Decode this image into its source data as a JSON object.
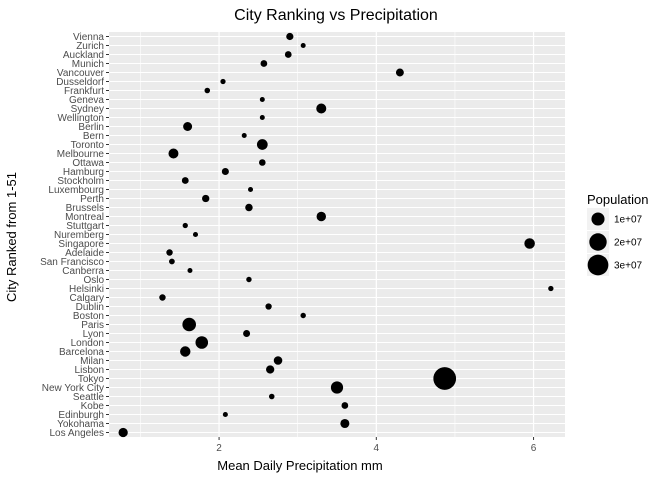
{
  "chart_data": {
    "type": "scatter",
    "title": "City Ranking vs Precipitation",
    "xlabel": "Mean Daily Precipitation mm",
    "ylabel": "City Ranked from 1-51",
    "xlim": [
      0.6,
      6.4
    ],
    "x_ticks": [
      2,
      4,
      6
    ],
    "x_tick_labels": [
      "2",
      "4",
      "6"
    ],
    "legend": {
      "title": "Population",
      "placement": "right",
      "entries": [
        {
          "label": "1e+07",
          "value": 10000000
        },
        {
          "label": "2e+07",
          "value": 20000000
        },
        {
          "label": "3e+07",
          "value": 30000000
        }
      ]
    },
    "categories": [
      "Vienna",
      "Zurich",
      "Auckland",
      "Munich",
      "Vancouver",
      "Dusseldorf",
      "Frankfurt",
      "Geneva",
      "Sydney",
      "Wellington",
      "Berlin",
      "Bern",
      "Toronto",
      "Melbourne",
      "Ottawa",
      "Hamburg",
      "Stockholm",
      "Luxembourg",
      "Perth",
      "Brussels",
      "Montreal",
      "Stuttgart",
      "Nuremberg",
      "Singapore",
      "Adelaide",
      "San Francisco",
      "Canberra",
      "Oslo",
      "Helsinki",
      "Calgary",
      "Dublin",
      "Boston",
      "Paris",
      "Lyon",
      "London",
      "Barcelona",
      "Milan",
      "Lisbon",
      "Tokyo",
      "New York City",
      "Seattle",
      "Kobe",
      "Edinburgh",
      "Yokohama",
      "Los Angeles"
    ],
    "points": [
      {
        "city": "Vienna",
        "x": 2.9,
        "population": 1900000
      },
      {
        "city": "Zurich",
        "x": 3.07,
        "population": 400000
      },
      {
        "city": "Auckland",
        "x": 2.88,
        "population": 1500000
      },
      {
        "city": "Munich",
        "x": 2.57,
        "population": 1500000
      },
      {
        "city": "Vancouver",
        "x": 4.3,
        "population": 2500000
      },
      {
        "city": "Dusseldorf",
        "x": 2.05,
        "population": 600000
      },
      {
        "city": "Frankfurt",
        "x": 1.85,
        "population": 750000
      },
      {
        "city": "Geneva",
        "x": 2.55,
        "population": 200000
      },
      {
        "city": "Sydney",
        "x": 3.3,
        "population": 5000000
      },
      {
        "city": "Wellington",
        "x": 2.55,
        "population": 400000
      },
      {
        "city": "Berlin",
        "x": 1.6,
        "population": 3600000
      },
      {
        "city": "Bern",
        "x": 2.32,
        "population": 140000
      },
      {
        "city": "Toronto",
        "x": 2.55,
        "population": 6000000
      },
      {
        "city": "Melbourne",
        "x": 1.42,
        "population": 4900000
      },
      {
        "city": "Ottawa",
        "x": 2.55,
        "population": 1400000
      },
      {
        "city": "Hamburg",
        "x": 2.08,
        "population": 1800000
      },
      {
        "city": "Stockholm",
        "x": 1.57,
        "population": 1600000
      },
      {
        "city": "Luxembourg",
        "x": 2.4,
        "population": 120000
      },
      {
        "city": "Perth",
        "x": 1.83,
        "population": 2000000
      },
      {
        "city": "Brussels",
        "x": 2.38,
        "population": 2100000
      },
      {
        "city": "Montreal",
        "x": 3.3,
        "population": 4200000
      },
      {
        "city": "Stuttgart",
        "x": 1.57,
        "population": 630000
      },
      {
        "city": "Nuremberg",
        "x": 1.7,
        "population": 520000
      },
      {
        "city": "Singapore",
        "x": 5.95,
        "population": 5700000
      },
      {
        "city": "Adelaide",
        "x": 1.37,
        "population": 1300000
      },
      {
        "city": "San Francisco",
        "x": 1.4,
        "population": 880000
      },
      {
        "city": "Canberra",
        "x": 1.63,
        "population": 430000
      },
      {
        "city": "Oslo",
        "x": 2.38,
        "population": 700000
      },
      {
        "city": "Helsinki",
        "x": 6.22,
        "population": 650000
      },
      {
        "city": "Calgary",
        "x": 1.28,
        "population": 1300000
      },
      {
        "city": "Dublin",
        "x": 2.63,
        "population": 1200000
      },
      {
        "city": "Boston",
        "x": 3.07,
        "population": 690000
      },
      {
        "city": "Paris",
        "x": 1.62,
        "population": 11000000
      },
      {
        "city": "Lyon",
        "x": 2.35,
        "population": 1700000
      },
      {
        "city": "London",
        "x": 1.78,
        "population": 9000000
      },
      {
        "city": "Barcelona",
        "x": 1.57,
        "population": 5500000
      },
      {
        "city": "Milan",
        "x": 2.75,
        "population": 3200000
      },
      {
        "city": "Lisbon",
        "x": 2.65,
        "population": 2900000
      },
      {
        "city": "Tokyo",
        "x": 4.87,
        "population": 37000000
      },
      {
        "city": "New York City",
        "x": 3.5,
        "population": 8400000
      },
      {
        "city": "Seattle",
        "x": 2.67,
        "population": 750000
      },
      {
        "city": "Kobe",
        "x": 3.6,
        "population": 1500000
      },
      {
        "city": "Edinburgh",
        "x": 2.08,
        "population": 520000
      },
      {
        "city": "Yokohama",
        "x": 3.6,
        "population": 3700000
      },
      {
        "city": "Los Angeles",
        "x": 0.78,
        "population": 4000000
      }
    ],
    "grid": true,
    "panel_background": "#ebebeb",
    "gridline_color": "#ffffff",
    "point_color": "#000000"
  }
}
